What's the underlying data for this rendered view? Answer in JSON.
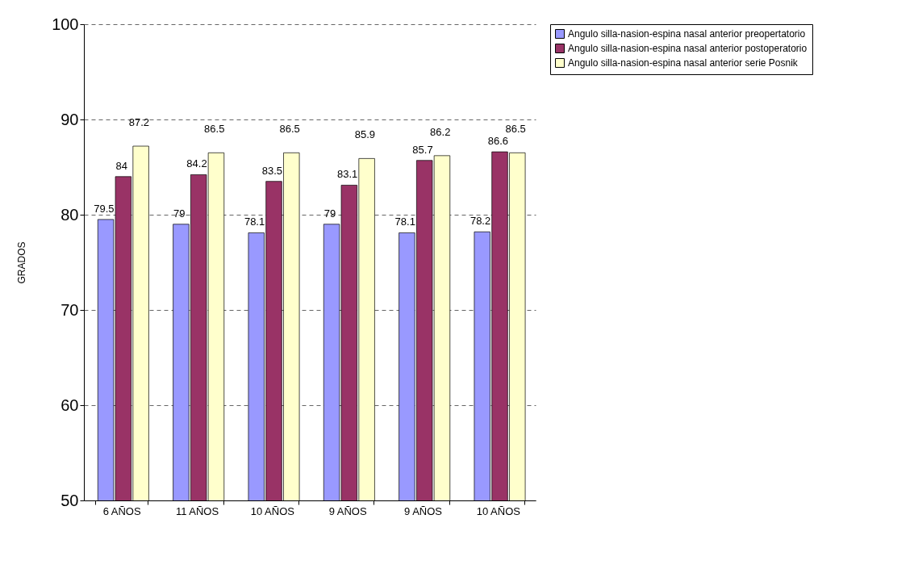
{
  "chart_data": {
    "type": "bar",
    "ylabel": "GRADOS",
    "categories": [
      "6 AÑOS",
      "11 AÑOS",
      "10 AÑOS",
      "9 AÑOS",
      "9 AÑOS",
      "10 AÑOS"
    ],
    "series": [
      {
        "name": "Angulo silla-nasion-espina nasal anterior preopertatorio",
        "color": "#9999ff",
        "values": [
          79.5,
          79,
          78.1,
          79,
          78.1,
          78.2
        ]
      },
      {
        "name": "Angulo silla-nasion-espina nasal anterior postoperatorio",
        "color": "#993366",
        "values": [
          84,
          84.2,
          83.5,
          83.1,
          85.7,
          86.6
        ]
      },
      {
        "name": "Angulo silla-nasion-espina nasal anterior serie Posnik",
        "color": "#ffffcc",
        "values": [
          87.2,
          86.5,
          86.5,
          85.9,
          86.2,
          86.5
        ]
      }
    ],
    "ylim": [
      50,
      100
    ],
    "yticks": [
      50,
      60,
      70,
      80,
      90,
      100
    ],
    "grid": "y",
    "legend": "right",
    "data_labels": true
  }
}
